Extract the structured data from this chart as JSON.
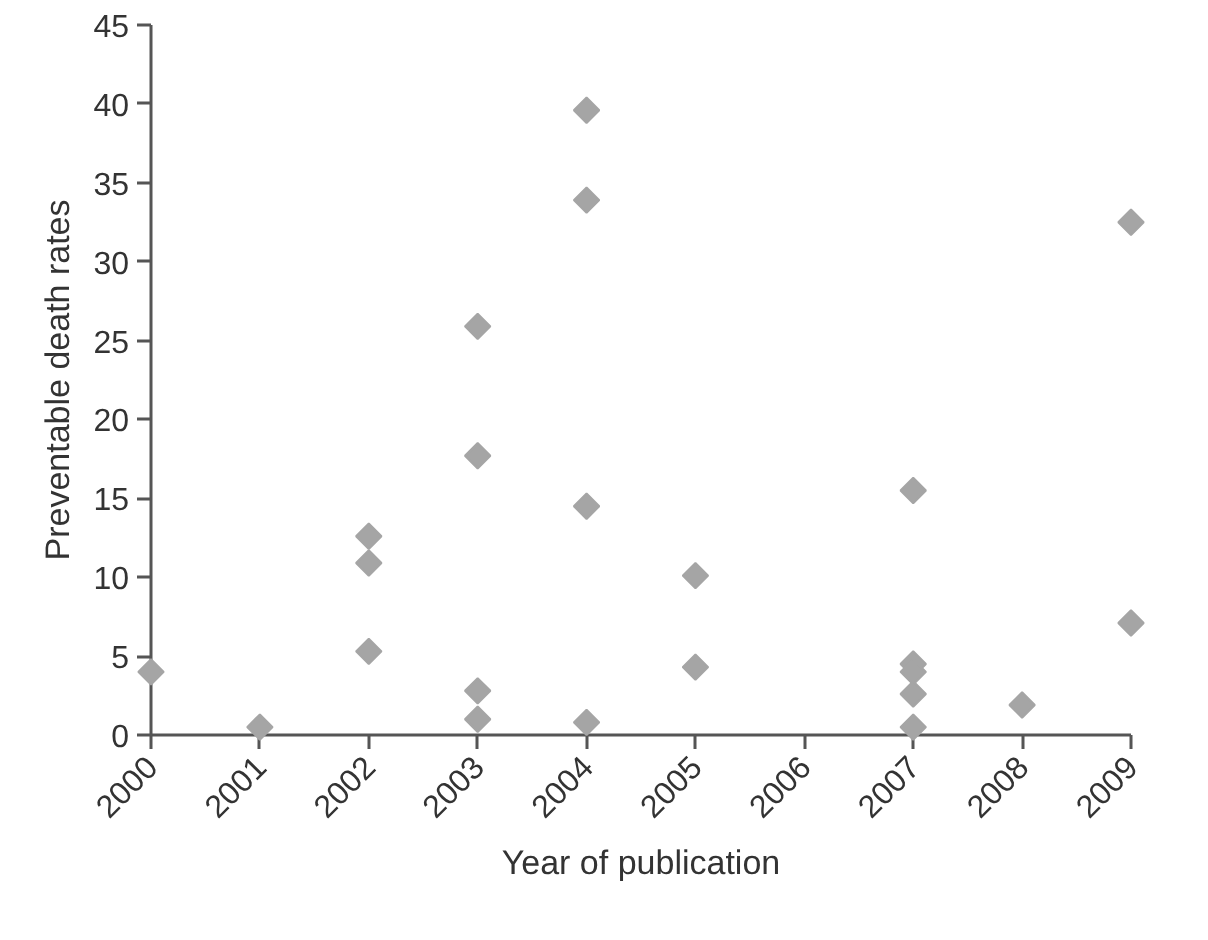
{
  "chart_data": {
    "type": "scatter",
    "xlabel": "Year of publication",
    "ylabel": "Preventable death rates",
    "series": [
      {
        "color": "#a5a5a5",
        "x": [
          2000,
          2001,
          2002,
          2002,
          2002,
          2003,
          2003,
          2003,
          2003,
          2004,
          2004,
          2004,
          2004,
          2005,
          2005,
          2007,
          2007,
          2007,
          2007,
          2007,
          2008,
          2009,
          2009
        ],
        "values": [
          4.0,
          0.5,
          12.6,
          10.9,
          5.3,
          25.9,
          17.7,
          2.8,
          1.0,
          39.6,
          33.9,
          14.5,
          0.8,
          10.1,
          4.3,
          15.5,
          4.5,
          4.0,
          2.6,
          0.5,
          1.9,
          32.5,
          7.1
        ]
      }
    ],
    "xlim": [
      2000,
      2009
    ],
    "ylim": [
      0,
      45
    ],
    "xticks": [
      2000,
      2001,
      2002,
      2003,
      2004,
      2005,
      2006,
      2007,
      2008,
      2009
    ],
    "yticks": [
      0,
      5,
      10,
      15,
      20,
      25,
      30,
      35,
      40,
      45
    ],
    "marker": "diamond"
  }
}
